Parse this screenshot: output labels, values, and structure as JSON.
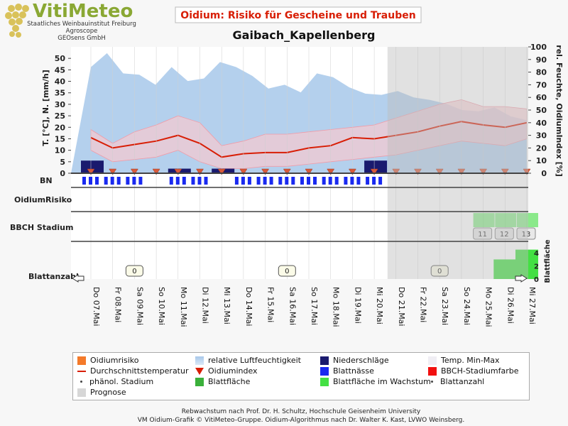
{
  "header": {
    "logo_title": "VitiMeteo",
    "logo_lines": [
      "Staatliches Weinbauinstitut Freiburg",
      "Agroscope",
      "GEOsens GmbH"
    ],
    "chart_title": "Oidium: Risiko für Gescheine und Trauben",
    "station": "Gaibach_Kapellenberg"
  },
  "colors": {
    "accent": "#d81e05",
    "humidity": "#a7c8ea",
    "precip": "#1a1a6e",
    "leafwet": "#1a2af0",
    "temp_band": "#f6c9cf",
    "temp_line": "#d81e05",
    "oidium_marker": "#d85a3b",
    "leaf_area": "#3ab03a",
    "leaf_growth": "#43e043",
    "forecast": "#d7d7d7"
  },
  "chart_data": {
    "type": "line",
    "x": [
      "Do 07.Mai",
      "Fr 08.Mai",
      "Sa 09.Mai",
      "So 10.Mai",
      "Mo 11.Mai",
      "Di 12.Mai",
      "Mi 13.Mai",
      "Do 14.Mai",
      "Fr 15.Mai",
      "Sa 16.Mai",
      "So 17.Mai",
      "Mo 18.Mai",
      "Di 19.Mai",
      "Mi 20.Mai",
      "Do 21.Mai",
      "Fr 22.Mai",
      "Sa 23.Mai",
      "So 24.Mai",
      "Mo 25.Mai",
      "Di 26.Mai",
      "Mi 27.Mai"
    ],
    "forecast_start": "Do 21.Mai",
    "main_panel": {
      "ylabel_left": "T. [°C], N. [mm/h]",
      "ylabel_right": "rel. Feuchte, OidiumIndex [%]",
      "yticks_left": [
        0,
        5,
        10,
        15,
        20,
        25,
        30,
        35,
        40,
        45,
        50
      ],
      "yticks_right": [
        0,
        10,
        20,
        30,
        40,
        50,
        60,
        70,
        80,
        90,
        100
      ],
      "ylim_left": [
        0,
        55
      ],
      "ylim_right": [
        0,
        100
      ],
      "humidity_pct": [
        84,
        95,
        79,
        78,
        70,
        84,
        73,
        75,
        88,
        84,
        77,
        67,
        70,
        64,
        79,
        76,
        68,
        63,
        62,
        65,
        60,
        58,
        55,
        50,
        49,
        52,
        45,
        42
      ],
      "humidity_x": [
        0,
        0.5,
        1,
        1.5,
        2,
        2.5,
        3,
        3.5,
        4,
        4.5,
        5,
        5.5,
        6,
        6.5,
        7,
        7.5,
        8,
        8.5,
        9,
        9.5,
        10,
        10.5,
        11,
        11.5,
        12,
        12.5,
        13,
        13.5
      ],
      "humidity_forecast": [
        79,
        76,
        68,
        63,
        62,
        65,
        60,
        58,
        55,
        50,
        49,
        52,
        45,
        42
      ],
      "temp_avg": [
        15.5,
        11,
        12.5,
        14,
        16.5,
        13,
        7,
        8.5,
        9,
        9,
        11,
        12,
        15.5,
        15,
        16.5,
        18,
        20.5,
        22.5,
        21,
        20,
        22
      ],
      "temp_min": [
        10,
        5,
        6,
        7,
        10,
        5,
        2,
        2,
        3,
        3,
        4,
        5,
        6,
        7,
        8,
        10,
        12,
        14,
        13,
        12,
        15
      ],
      "temp_max": [
        19,
        13,
        18,
        21,
        25,
        22,
        12,
        14,
        17,
        17,
        18,
        19,
        20,
        21,
        24,
        27,
        30,
        32,
        29,
        29,
        28
      ],
      "precip_mm": [
        {
          "day": 0,
          "value": 5.5
        },
        {
          "day": 4,
          "value": 2
        },
        {
          "day": 6,
          "value": 2
        },
        {
          "day": 13,
          "value": 5.5
        }
      ],
      "oidium_index_pct": [
        0,
        0,
        0,
        0,
        0,
        0,
        0,
        0,
        0,
        0,
        0,
        0,
        0,
        0,
        0,
        0,
        0,
        0,
        0,
        0,
        0
      ]
    },
    "rows": {
      "bn_label": "BN",
      "oidium_label": "OidiumRisiko",
      "bbch_label": "BBCH Stadium",
      "blatt_label": "Blattanzahl",
      "bbch_values": [
        {
          "day": 18,
          "value": "11"
        },
        {
          "day": 19,
          "value": "12"
        },
        {
          "day": 20,
          "value": "13"
        }
      ],
      "leaf_count_bubbles": [
        {
          "day": 2,
          "value": "0"
        },
        {
          "day": 9,
          "value": "0"
        },
        {
          "day": 16,
          "value": "0"
        }
      ],
      "blattflaeche_label": "Blattfläche",
      "blattflaeche_yticks": [
        0,
        2,
        4
      ],
      "blattflaeche_values": [
        {
          "day": 19,
          "value": 3
        },
        {
          "day": 20,
          "value": 4.5
        }
      ]
    }
  },
  "legend": [
    {
      "label": "Oidiumrisiko",
      "kind": "square",
      "color": "#f47a2a"
    },
    {
      "label": "relative Luftfeuchtigkeit",
      "kind": "gradient",
      "color": "#a7c8ea"
    },
    {
      "label": "Niederschläge",
      "kind": "square",
      "color": "#1a1a6e"
    },
    {
      "label": "Temp. Min-Max",
      "kind": "square",
      "color": "#f0eef4"
    },
    {
      "label": "Durchschnittstemperatur",
      "kind": "line",
      "color": "#d81e05"
    },
    {
      "label": "Oidiumindex",
      "kind": "triangle",
      "color": "#d81e05"
    },
    {
      "label": "Blattnässe",
      "kind": "square",
      "color": "#1a2af0"
    },
    {
      "label": "BBCH-Stadiumfarbe",
      "kind": "square",
      "color": "#f21010"
    },
    {
      "label": "phänol. Stadium",
      "kind": "dot",
      "color": "#444444"
    },
    {
      "label": "Blattfläche",
      "kind": "square",
      "color": "#3ab03a"
    },
    {
      "label": "Blattfläche im Wachstum",
      "kind": "square",
      "color": "#43e043"
    },
    {
      "label": "Blattanzahl",
      "kind": "dot",
      "color": "#444444"
    },
    {
      "label": "Prognose",
      "kind": "square",
      "color": "#d7d7d7"
    }
  ],
  "footer": {
    "line1": "Rebwachstum nach Prof. Dr. H. Schultz, Hochschule Geisenheim University",
    "line2": "VM Oidium-Grafik © VitiMeteo-Gruppe. Oidium-Algorithmus nach Dr. Walter K. Kast, LVWO Weinsberg."
  }
}
